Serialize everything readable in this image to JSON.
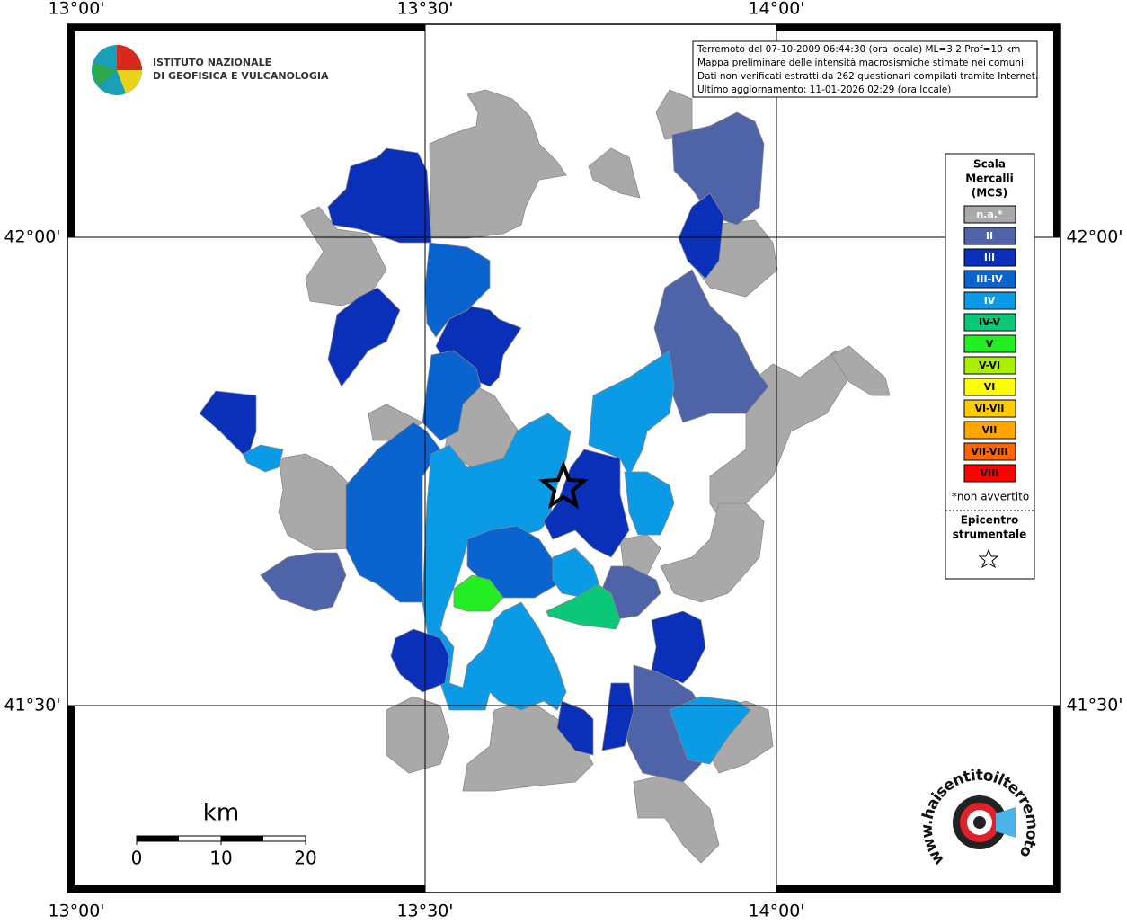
{
  "map": {
    "lon_labels": [
      "13°00'",
      "13°30'",
      "14°00'"
    ],
    "lat_labels": [
      "42°00'",
      "41°30'"
    ],
    "institute": [
      "ISTITUTO NAZIONALE",
      "DI GEOFISICA E VULCANOLOGIA"
    ],
    "info": [
      "Terremoto del 07-10-2009 06:44:30 (ora locale) ML=3.2 Prof=10 km",
      "Mappa preliminare delle intensità macrosismiche stimate nei comuni",
      "Dati non verificati estratti da 262 questionari compilati tramite Internet.",
      "Ultimo aggiornamento: 11-01-2026 02:29 (ora locale)"
    ],
    "legend": {
      "title": [
        "Scala",
        "Mercalli",
        "(MCS)"
      ],
      "items": [
        {
          "label": "n.a.*",
          "color": "#a9a9a9"
        },
        {
          "label": "II",
          "color": "#4f63a8"
        },
        {
          "label": "III",
          "color": "#0a2fb8"
        },
        {
          "label": "III-IV",
          "color": "#0a64d0"
        },
        {
          "label": "IV",
          "color": "#0a9ae6"
        },
        {
          "label": "IV-V",
          "color": "#0ac878"
        },
        {
          "label": "V",
          "color": "#22ee22"
        },
        {
          "label": "V-VI",
          "color": "#aaee00"
        },
        {
          "label": "VI",
          "color": "#ffff00"
        },
        {
          "label": "VI-VII",
          "color": "#ffcc00"
        },
        {
          "label": "VII",
          "color": "#ffa500"
        },
        {
          "label": "VII-VIII",
          "color": "#ff6600"
        },
        {
          "label": "VIII",
          "color": "#ff0000"
        }
      ],
      "note": "*non avvertito",
      "epicenter": [
        "Epicentro",
        "strumentale"
      ]
    },
    "scale": {
      "unit": "km",
      "ticks": [
        "0",
        "10",
        "20"
      ]
    },
    "site": "www.haisentitoilterremoto.it"
  }
}
